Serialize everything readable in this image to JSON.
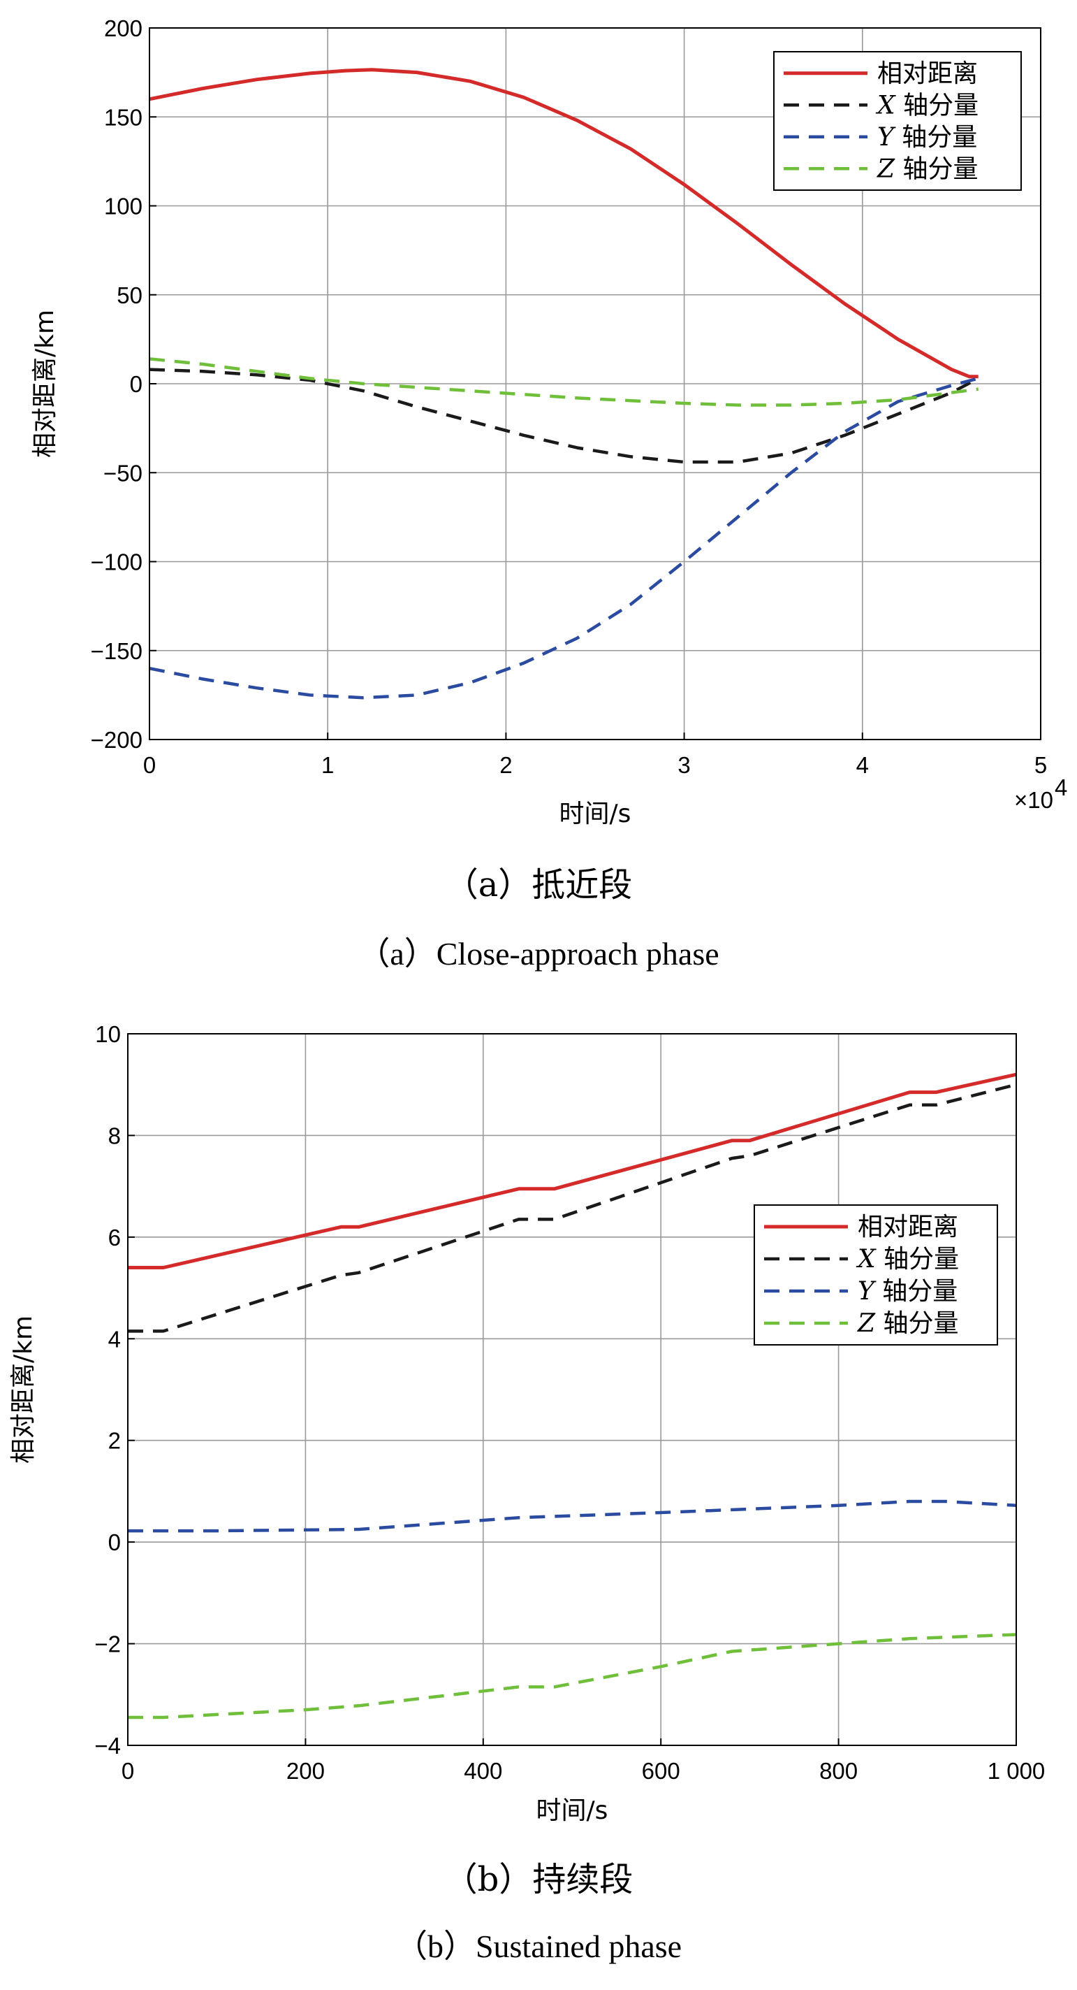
{
  "chart_data": [
    {
      "type": "line",
      "caption_cn": "（a）抵近段",
      "caption_en": "（a）Close-approach phase",
      "xlabel": "时间/s",
      "ylabel": "相对距离/km",
      "x_exponent_label": "×10",
      "x_exponent_power": "4",
      "xlim": [
        0,
        5
      ],
      "ylim": [
        -200,
        200
      ],
      "x_ticks": [
        0,
        1,
        2,
        3,
        4,
        5
      ],
      "x_tick_labels": [
        "0",
        "1",
        "2",
        "3",
        "4",
        "5"
      ],
      "y_ticks": [
        200,
        150,
        100,
        50,
        0,
        -50,
        -100,
        -150,
        -200
      ],
      "y_tick_labels": [
        "200",
        "150",
        "100",
        "50",
        "0",
        "−50",
        "−100",
        "−150",
        "−200"
      ],
      "grid": true,
      "legend_position": "top-right",
      "series": [
        {
          "name": "相对距离",
          "axis_letter": "",
          "label_cn": "相对距离",
          "color": "#d42a2a",
          "style": "solid",
          "x": [
            0,
            0.3,
            0.6,
            0.9,
            1.1,
            1.25,
            1.5,
            1.8,
            2.1,
            2.4,
            2.7,
            3.0,
            3.3,
            3.6,
            3.9,
            4.2,
            4.5,
            4.6,
            4.65
          ],
          "y": [
            160,
            166,
            171,
            174.5,
            176,
            176.5,
            175,
            170,
            161,
            148,
            132,
            112,
            90,
            67,
            45,
            25,
            8,
            4,
            4
          ]
        },
        {
          "name": "X 轴分量",
          "axis_letter": "X",
          "label_cn": " 轴分量",
          "color": "#1a1a1a",
          "style": "dashed",
          "x": [
            0,
            0.3,
            0.6,
            0.9,
            1.2,
            1.5,
            1.8,
            2.1,
            2.4,
            2.7,
            3.0,
            3.3,
            3.6,
            3.9,
            4.2,
            4.5,
            4.65
          ],
          "y": [
            8,
            7,
            5,
            2,
            -4,
            -13,
            -21,
            -29,
            -36,
            -41,
            -44,
            -44,
            -39,
            -29,
            -17,
            -5,
            3
          ]
        },
        {
          "name": "Y 轴分量",
          "axis_letter": "Y",
          "label_cn": " 轴分量",
          "color": "#2a4ba0",
          "style": "dashed",
          "x": [
            0,
            0.3,
            0.6,
            0.9,
            1.2,
            1.5,
            1.8,
            2.1,
            2.4,
            2.7,
            3.0,
            3.3,
            3.6,
            3.9,
            4.2,
            4.5,
            4.65
          ],
          "y": [
            -160,
            -166,
            -171,
            -175,
            -176.5,
            -175,
            -168,
            -157,
            -143,
            -124,
            -100,
            -75,
            -50,
            -27,
            -10,
            -1,
            3
          ]
        },
        {
          "name": "Z 轴分量",
          "axis_letter": "Z",
          "label_cn": " 轴分量",
          "color": "#6fbf3a",
          "style": "dashed",
          "x": [
            0,
            0.3,
            0.6,
            0.9,
            1.2,
            1.5,
            1.8,
            2.1,
            2.4,
            2.7,
            3.0,
            3.3,
            3.6,
            3.9,
            4.2,
            4.5,
            4.65
          ],
          "y": [
            14,
            11,
            7,
            3,
            0,
            -2,
            -4,
            -6,
            -8,
            -9.5,
            -11,
            -12,
            -12,
            -11,
            -9,
            -5,
            -3
          ]
        }
      ]
    },
    {
      "type": "line",
      "caption_cn": "（b）持续段",
      "caption_en": "（b）Sustained phase",
      "xlabel": "时间/s",
      "ylabel": "相对距离/km",
      "xlim": [
        0,
        1000
      ],
      "ylim": [
        -4,
        10
      ],
      "x_ticks": [
        0,
        200,
        400,
        600,
        800,
        1000
      ],
      "x_tick_labels": [
        "0",
        "200",
        "400",
        "600",
        "800",
        "1 000"
      ],
      "y_ticks": [
        10,
        8,
        6,
        4,
        2,
        0,
        -2,
        -4
      ],
      "y_tick_labels": [
        "10",
        "8",
        "6",
        "4",
        "2",
        "0",
        "−2",
        "−4"
      ],
      "grid": true,
      "legend_position": "right",
      "series": [
        {
          "name": "相对距离",
          "axis_letter": "",
          "label_cn": "相对距离",
          "color": "#d42a2a",
          "style": "solid",
          "x": [
            0,
            40,
            240,
            260,
            440,
            480,
            680,
            700,
            880,
            910,
            1000
          ],
          "y": [
            5.4,
            5.4,
            6.2,
            6.2,
            6.95,
            6.95,
            7.9,
            7.9,
            8.85,
            8.85,
            9.2
          ]
        },
        {
          "name": "X 轴分量",
          "axis_letter": "X",
          "label_cn": " 轴分量",
          "color": "#1a1a1a",
          "style": "dashed",
          "x": [
            0,
            40,
            240,
            260,
            440,
            480,
            680,
            700,
            880,
            910,
            1000
          ],
          "y": [
            4.15,
            4.15,
            5.25,
            5.3,
            6.35,
            6.35,
            7.55,
            7.6,
            8.6,
            8.6,
            9.0
          ]
        },
        {
          "name": "Y 轴分量",
          "axis_letter": "Y",
          "label_cn": " 轴分量",
          "color": "#2a4ba0",
          "style": "dashed",
          "x": [
            0,
            100,
            260,
            440,
            600,
            800,
            880,
            920,
            1000
          ],
          "y": [
            0.22,
            0.22,
            0.25,
            0.48,
            0.58,
            0.72,
            0.8,
            0.8,
            0.72
          ]
        },
        {
          "name": "Z 轴分量",
          "axis_letter": "Z",
          "label_cn": " 轴分量",
          "color": "#6fbf3a",
          "style": "dashed",
          "x": [
            0,
            40,
            200,
            260,
            440,
            480,
            600,
            680,
            800,
            880,
            1000
          ],
          "y": [
            -3.45,
            -3.45,
            -3.3,
            -3.22,
            -2.85,
            -2.85,
            -2.45,
            -2.15,
            -2.0,
            -1.9,
            -1.82
          ]
        }
      ]
    }
  ]
}
